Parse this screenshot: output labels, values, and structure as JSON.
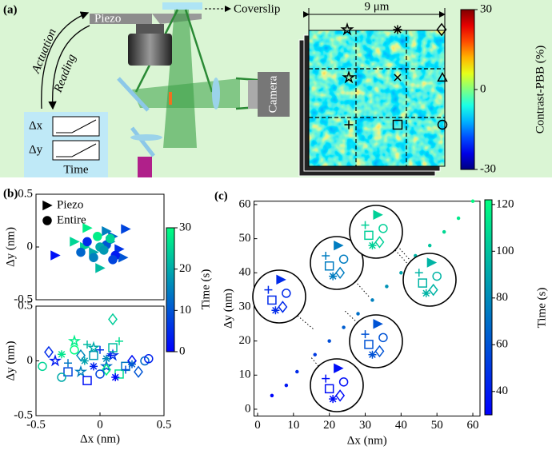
{
  "panel_a": {
    "label": "(a)",
    "piezo": "Piezo",
    "coverslip": "Coverslip",
    "actuation": "Actuation",
    "reading": "Reading",
    "dx": "Δx",
    "dy": "Δy",
    "time": "Time",
    "camera": "Camera",
    "scale": "9 μm",
    "colorbar": {
      "label": "Contrast-PBB (%)",
      "colormap": "jet",
      "lim": [
        -30,
        30
      ],
      "ticks": [
        30,
        0,
        -30
      ]
    }
  },
  "chart_data": [
    {
      "type": "scatter",
      "panel_label": "(b)",
      "ylabel": "Δy (nm)",
      "xlim": [
        -0.5,
        0.5
      ],
      "ylim": [
        -0.5,
        0.5
      ],
      "yticks": [
        -0.5,
        0,
        0.5
      ],
      "legend": "upper left",
      "colorbar": {
        "label": "Time (s)",
        "colormap": "winter",
        "lim": [
          0,
          30
        ],
        "ticks": [
          0,
          10,
          20,
          30
        ]
      },
      "series": [
        {
          "name": "Piezo",
          "marker": "triangle-right",
          "filled": true,
          "x": [
            -0.35,
            -0.1,
            0.05,
            0.2,
            -0.05,
            0.1,
            0.15,
            -0.2,
            0.0,
            0.08,
            -0.12,
            0.18
          ],
          "y": [
            -0.08,
            0.18,
            0.15,
            0.17,
            -0.05,
            0.1,
            -0.02,
            0.05,
            -0.2,
            0.05,
            0.0,
            -0.1
          ],
          "time": [
            2,
            28,
            15,
            8,
            20,
            12,
            6,
            25,
            22,
            18,
            24,
            10
          ]
        },
        {
          "name": "Entire",
          "marker": "circle",
          "filled": true,
          "x": [
            -0.1,
            0.05,
            0.12,
            -0.05,
            0.0,
            0.08,
            -0.15,
            0.1,
            -0.02,
            0.03
          ],
          "y": [
            0.05,
            0.02,
            -0.08,
            -0.1,
            0.0,
            0.08,
            -0.05,
            -0.12,
            0.1,
            -0.03
          ],
          "time": [
            5,
            10,
            3,
            15,
            20,
            25,
            12,
            8,
            28,
            18
          ]
        }
      ]
    },
    {
      "type": "scatter",
      "xlabel": "Δx (nm)",
      "ylabel": "Δy (nm)",
      "xlim": [
        -0.5,
        0.5
      ],
      "ylim": [
        -0.5,
        0.5
      ],
      "xticks": [
        -0.5,
        0,
        0.5
      ],
      "yticks": [
        -0.5,
        0,
        0.5
      ],
      "series": [
        {
          "marker": "star",
          "filled": false,
          "x": [
            -0.35,
            -0.2,
            0.05,
            0.1,
            -0.05,
            -0.15
          ],
          "y": [
            0.0,
            0.18,
            -0.05,
            0.05,
            0.12,
            -0.1
          ],
          "time": [
            3,
            28,
            12,
            6,
            20,
            15
          ]
        },
        {
          "marker": "square",
          "filled": false,
          "x": [
            -0.25,
            -0.1,
            0.1,
            0.2,
            -0.05,
            0.15
          ],
          "y": [
            -0.1,
            -0.18,
            0.12,
            -0.05,
            0.05,
            -0.12
          ],
          "time": [
            8,
            2,
            22,
            14,
            18,
            26
          ]
        },
        {
          "marker": "diamond",
          "filled": false,
          "x": [
            -0.4,
            0.1,
            0.3,
            -0.15,
            0.25,
            0.05
          ],
          "y": [
            0.08,
            0.38,
            -0.1,
            0.05,
            0.0,
            -0.08
          ],
          "time": [
            5,
            24,
            10,
            16,
            2,
            28
          ]
        },
        {
          "marker": "circle",
          "filled": false,
          "x": [
            -0.45,
            -0.3,
            0.35,
            0.38,
            0.0,
            -0.2
          ],
          "y": [
            -0.05,
            -0.15,
            0.0,
            0.02,
            -0.12,
            0.1
          ],
          "time": [
            25,
            20,
            12,
            4,
            8,
            30
          ]
        },
        {
          "marker": "plus",
          "filled": false,
          "x": [
            -0.1,
            0.0,
            0.15,
            0.2,
            -0.25,
            0.08
          ],
          "y": [
            0.15,
            0.1,
            0.18,
            -0.08,
            -0.02,
            0.05
          ],
          "time": [
            22,
            6,
            26,
            9,
            14,
            3
          ]
        },
        {
          "marker": "asterisk",
          "filled": false,
          "x": [
            -0.05,
            0.05,
            0.25,
            -0.3,
            0.12,
            -0.12
          ],
          "y": [
            -0.05,
            0.02,
            -0.03,
            0.06,
            -0.15,
            0.0
          ],
          "time": [
            4,
            16,
            11,
            27,
            1,
            19
          ]
        }
      ]
    },
    {
      "type": "scatter",
      "panel_label": "(c)",
      "xlabel": "Δx (nm)",
      "ylabel": "Δy (nm)",
      "xlim": [
        -1,
        62
      ],
      "ylim": [
        -2,
        61
      ],
      "xticks": [
        0,
        10,
        20,
        30,
        40,
        50,
        60
      ],
      "yticks": [
        0,
        10,
        20,
        30,
        40,
        50,
        60
      ],
      "colorbar": {
        "label": "Time (s)",
        "colormap": "winter",
        "lim": [
          30,
          122
        ],
        "ticks": [
          40,
          60,
          80,
          100,
          120
        ]
      },
      "series": [
        {
          "marker": "dot",
          "filled": true,
          "x": [
            4,
            8,
            11,
            16,
            20,
            24,
            28,
            32,
            36,
            40,
            44,
            48,
            52,
            56,
            60
          ],
          "y": [
            4,
            7,
            11,
            16,
            20,
            24,
            28,
            32,
            36,
            40,
            45,
            48,
            52,
            56,
            61
          ],
          "time": [
            32,
            38,
            45,
            51,
            58,
            64,
            70,
            76,
            83,
            89,
            95,
            101,
            108,
            114,
            120
          ]
        },
        {
          "marker": "triangle-right",
          "filled": true,
          "x": [
            22.5,
            6.5,
            33.5,
            22.5,
            48.5,
            33.5
          ],
          "y": [
            12,
            38,
            25,
            48,
            43,
            57
          ],
          "time": [
            35,
            45,
            60,
            75,
            95,
            105
          ]
        },
        {
          "marker": "circle",
          "filled": false,
          "x": [
            24,
            8,
            35,
            24,
            50,
            35
          ],
          "y": [
            8,
            34,
            21,
            44,
            39,
            53
          ],
          "time": [
            35,
            45,
            60,
            75,
            95,
            105
          ]
        },
        {
          "marker": "plus",
          "filled": false,
          "x": [
            19,
            3,
            30,
            19,
            45,
            30
          ],
          "y": [
            9,
            35,
            22,
            45,
            40,
            54
          ],
          "time": [
            35,
            45,
            60,
            75,
            95,
            105
          ]
        },
        {
          "marker": "square",
          "filled": false,
          "x": [
            20,
            4,
            31,
            20,
            46,
            31
          ],
          "y": [
            6,
            32,
            19,
            42,
            37,
            51
          ],
          "time": [
            35,
            45,
            60,
            75,
            95,
            105
          ]
        },
        {
          "marker": "diamond",
          "filled": false,
          "x": [
            23,
            7,
            34,
            23,
            49,
            34
          ],
          "y": [
            4,
            30,
            17,
            40,
            35,
            49
          ],
          "time": [
            35,
            45,
            60,
            75,
            95,
            105
          ]
        },
        {
          "marker": "asterisk",
          "filled": false,
          "x": [
            21,
            5,
            32,
            21,
            47,
            32
          ],
          "y": [
            3,
            29,
            16,
            39,
            34,
            48
          ],
          "time": [
            35,
            45,
            60,
            75,
            95,
            105
          ]
        }
      ]
    }
  ]
}
